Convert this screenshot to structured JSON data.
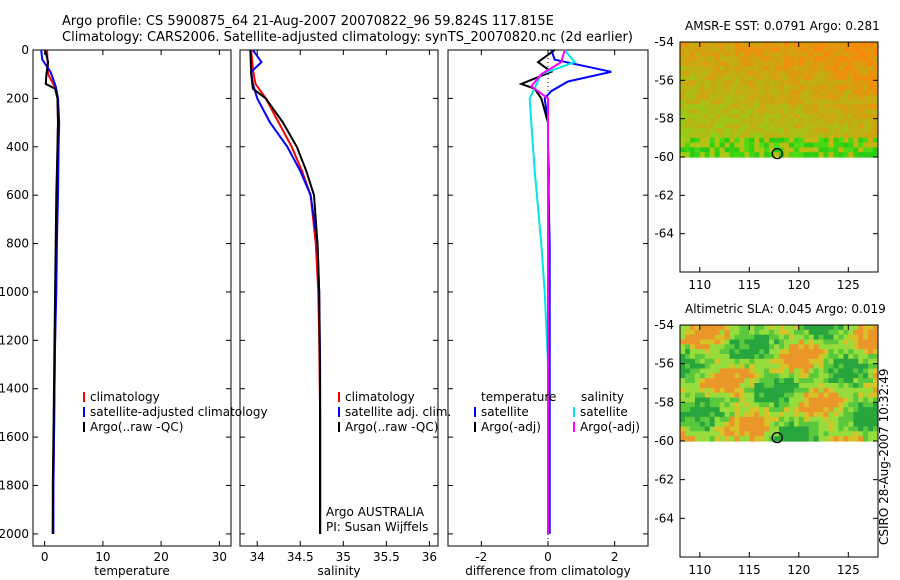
{
  "header": {
    "line1": "Argo profile: CS 5900875_64 21-Aug-2007 20070822_96 59.824S 117.815E",
    "line2": "Climatology: CARS2006. Satellite-adjusted climatology: synTS_20070820.nc (2d earlier)"
  },
  "footer": {
    "credit": "CSIRO 28-Aug-2007 10:32:49"
  },
  "colors": {
    "climatology": "#ff0000",
    "satellite": "#0000ff",
    "argo": "#000000",
    "sat_salinity": "#00e5ee",
    "argo_salinity": "#ff00ff"
  },
  "chart_data": [
    {
      "type": "line",
      "name": "temperature-profile",
      "xlabel": "temperature",
      "ylabel": "",
      "xlim": [
        -2,
        32
      ],
      "ylim": [
        2050,
        0
      ],
      "xticks": [
        0,
        10,
        20,
        30
      ],
      "yticks": [
        0,
        200,
        400,
        600,
        800,
        1000,
        1200,
        1400,
        1600,
        1800,
        2000
      ],
      "legend": [
        "climatology",
        "satellite-adjusted climatology",
        "Argo(..raw -QC)"
      ],
      "series": [
        {
          "name": "climatology",
          "color": "#ff0000",
          "x": [
            0.4,
            0.5,
            0.6,
            1.9,
            2.2,
            2.3,
            2.2,
            2.1,
            2.0,
            1.9,
            1.8,
            1.7,
            1.6,
            1.5,
            1.4,
            1.4
          ],
          "y": [
            0,
            50,
            100,
            160,
            200,
            300,
            400,
            600,
            800,
            1000,
            1200,
            1400,
            1600,
            1800,
            1950,
            2000
          ]
        },
        {
          "name": "satellite-adjusted climatology",
          "color": "#0000ff",
          "x": [
            -0.6,
            -0.4,
            1.0,
            1.9,
            2.3,
            2.5,
            2.4,
            2.3,
            2.1,
            2.0,
            1.8,
            1.7,
            1.6,
            1.5,
            1.5,
            1.5
          ],
          "y": [
            0,
            40,
            90,
            150,
            200,
            300,
            400,
            600,
            800,
            1000,
            1200,
            1400,
            1600,
            1800,
            1950,
            2000
          ]
        },
        {
          "name": "Argo(..raw -QC)",
          "color": "#000000",
          "x": [
            0.1,
            0.6,
            0.3,
            0.2,
            1.8,
            2.2,
            2.3,
            2.2,
            2.0,
            1.9,
            1.8,
            1.7,
            1.6,
            1.5,
            1.4,
            1.4
          ],
          "y": [
            0,
            50,
            100,
            140,
            160,
            200,
            300,
            400,
            600,
            800,
            1000,
            1200,
            1400,
            1600,
            1800,
            2000
          ]
        }
      ]
    },
    {
      "type": "line",
      "name": "salinity-profile",
      "xlabel": "salinity",
      "xlim": [
        33.8,
        36.1
      ],
      "ylim": [
        2050,
        0
      ],
      "xticks": [
        34,
        34.5,
        35,
        35.5,
        36
      ],
      "legend": [
        "climatology",
        "satellite adj. clim.",
        "Argo(..raw -QC)"
      ],
      "annotations": [
        "Argo AUSTRALIA",
        "PI: Susan Wijffels"
      ],
      "series": [
        {
          "name": "climatology",
          "color": "#ff0000",
          "x": [
            33.93,
            33.95,
            33.98,
            34.1,
            34.25,
            34.4,
            34.52,
            34.62,
            34.68,
            34.71,
            34.72,
            34.73,
            34.73,
            34.73
          ],
          "y": [
            0,
            80,
            140,
            200,
            300,
            400,
            500,
            600,
            800,
            1000,
            1200,
            1500,
            1800,
            2000
          ]
        },
        {
          "name": "satellite adj. clim.",
          "color": "#0000ff",
          "x": [
            33.95,
            34.05,
            33.93,
            33.95,
            34.0,
            34.15,
            34.35,
            34.5,
            34.62,
            34.7,
            34.72,
            34.73,
            34.73,
            34.73
          ],
          "y": [
            0,
            50,
            90,
            140,
            200,
            300,
            400,
            500,
            600,
            800,
            1000,
            1300,
            1700,
            2000
          ]
        },
        {
          "name": "Argo(..raw -QC)",
          "color": "#000000",
          "x": [
            33.92,
            33.93,
            33.95,
            34.1,
            34.3,
            34.46,
            34.57,
            34.66,
            34.7,
            34.72,
            34.73,
            34.73
          ],
          "y": [
            0,
            100,
            160,
            200,
            300,
            400,
            500,
            600,
            800,
            1000,
            1400,
            2000
          ]
        }
      ]
    },
    {
      "type": "line",
      "name": "difference-from-climatology",
      "xlabel": "difference from climatology",
      "xlim": [
        -3,
        3
      ],
      "ylim": [
        2050,
        0
      ],
      "xticks": [
        -2,
        0,
        2
      ],
      "legend_groups": {
        "temperature": [
          "satellite",
          "Argo(-adj)"
        ],
        "salinity": [
          "satellite",
          "Argo(-adj)"
        ]
      },
      "series": [
        {
          "name": "temperature satellite",
          "color": "#0000ff",
          "x": [
            0.1,
            0.2,
            1.9,
            0.6,
            0.1,
            -0.1,
            0.0,
            0.0,
            0.05,
            0.05,
            0.05,
            0.05
          ],
          "y": [
            0,
            40,
            90,
            130,
            170,
            200,
            300,
            500,
            800,
            1200,
            1600,
            2000
          ]
        },
        {
          "name": "temperature Argo(-adj)",
          "color": "#000000",
          "x": [
            0.2,
            -0.3,
            0.1,
            -0.8,
            -0.4,
            -0.2,
            0.0,
            0.0,
            0.02,
            0.0,
            0.0,
            0.0,
            0.0
          ],
          "y": [
            0,
            50,
            90,
            140,
            160,
            200,
            300,
            400,
            500,
            800,
            1200,
            1600,
            2000
          ]
        },
        {
          "name": "salinity satellite",
          "color": "#00e5ee",
          "x": [
            0.5,
            0.8,
            -0.2,
            -0.55,
            -0.5,
            -0.4,
            -0.2,
            -0.1,
            0.0,
            0.0,
            0.0
          ],
          "y": [
            0,
            50,
            100,
            200,
            300,
            500,
            800,
            1000,
            1300,
            1700,
            2000
          ]
        },
        {
          "name": "salinity Argo(-adj)",
          "color": "#ff00ff",
          "x": [
            0.5,
            0.4,
            -0.2,
            -0.5,
            0.0,
            0.0,
            0.0,
            0.0
          ],
          "y": [
            0,
            50,
            100,
            150,
            200,
            400,
            1000,
            2000
          ]
        }
      ]
    },
    {
      "type": "heatmap",
      "name": "amsr-e-sst-map",
      "title": "AMSR-E SST: 0.0791  Argo: 0.281",
      "xlim": [
        108,
        128
      ],
      "ylim": [
        -66,
        -54
      ],
      "xticks": [
        110,
        115,
        120,
        125
      ],
      "yticks": [
        -54,
        -56,
        -58,
        -60,
        -62,
        -64
      ],
      "data_extent_lat": [
        -60,
        -54
      ],
      "marker": {
        "lon": 117.815,
        "lat": -59.824
      }
    },
    {
      "type": "heatmap",
      "name": "altimetric-sla-map",
      "title": "Altimetric SLA: 0.045  Argo: 0.019",
      "xlim": [
        108,
        128
      ],
      "ylim": [
        -66,
        -54
      ],
      "xticks": [
        110,
        115,
        120,
        125
      ],
      "yticks": [
        -54,
        -56,
        -58,
        -60,
        -62,
        -64
      ],
      "data_extent_lat": [
        -60,
        -54
      ],
      "marker": {
        "lon": 117.815,
        "lat": -59.824
      }
    }
  ]
}
